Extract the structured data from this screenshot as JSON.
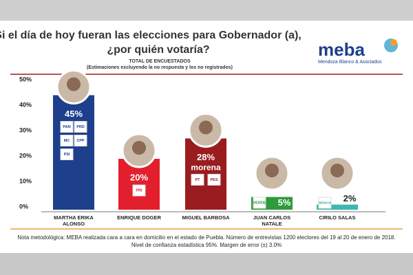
{
  "chart_data": {
    "type": "bar",
    "title": "Si el día de hoy fueran las elecciones para Gobernador (a),",
    "title_line2": "¿por quién votaría?",
    "subtitle": "TOTAL DE ENCUESTADOS",
    "subtitle_note": "(Estimaciones excluyendo la no respuesta y los no registrados)",
    "brand": "meba",
    "brand_tagline": "Mendoza Blanco & Asociados",
    "categories": [
      "MARTHA ERIKA ALONSO",
      "ENRIQUE DOGER",
      "MIGUEL BARBOSA",
      "JUAN CARLOS NATALE",
      "CIRILO SALAS"
    ],
    "values": [
      45,
      20,
      28,
      5,
      2
    ],
    "value_labels": [
      "45%",
      "20%",
      "28%",
      "5%",
      "2%"
    ],
    "colors": [
      "#1d3f8c",
      "#e41f2d",
      "#9a1c1f",
      "#2f9a3b",
      "#3db7b0"
    ],
    "party_labels": [
      [
        "PAN",
        "PRD",
        "MC",
        "CPP",
        "PSI"
      ],
      [
        "PRI"
      ],
      [
        "morena",
        "PT",
        "PES"
      ],
      [
        "VERDE"
      ],
      [
        "alianza"
      ]
    ],
    "ylim": [
      0,
      50
    ],
    "yticks": [
      {
        "value": 0,
        "label": "0%"
      },
      {
        "value": 10,
        "label": "10%"
      },
      {
        "value": 20,
        "label": "20%"
      },
      {
        "value": 30,
        "label": "30%"
      },
      {
        "value": 40,
        "label": "40%"
      },
      {
        "value": 50,
        "label": "50%"
      }
    ],
    "note": [
      "Nota metodológica: MEBA realizada cara a cara en domicilio en el estado de Puebla. Número de entrevistas 1200 electores del 19 al 20 de enero de 2018.",
      "Nivel de confianza estadística 95%. Margen de error (±) 3.0%"
    ]
  }
}
